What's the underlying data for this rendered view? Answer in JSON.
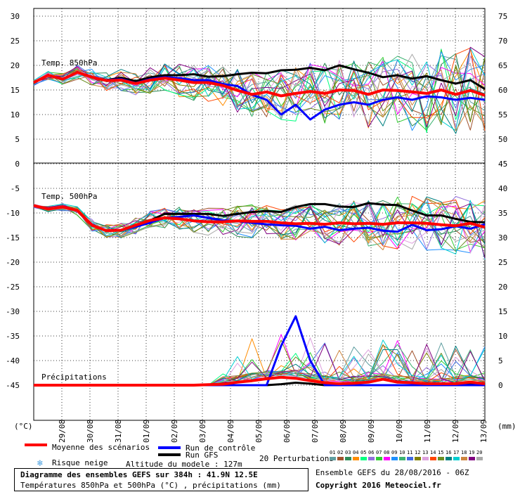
{
  "chart_data": {
    "type": "line",
    "title": "Diagramme des ensembles GEFS sur 384h : 41.9N 12.5E",
    "subtitle": "Températures 850hPa et 500hPa (°C) , précipitations (mm)",
    "x_labels": [
      "29/08",
      "30/08",
      "31/08",
      "01/09",
      "02/09",
      "03/09",
      "04/09",
      "05/09",
      "06/09",
      "07/09",
      "08/09",
      "09/09",
      "10/09",
      "11/09",
      "12/09",
      "13/09"
    ],
    "left_axis": {
      "unit": "(°C)",
      "ticks": [
        30,
        25,
        20,
        15,
        10,
        5,
        0,
        -5,
        -10,
        -15,
        -20,
        -25,
        -30,
        -35,
        -40,
        -45
      ]
    },
    "right_axis": {
      "unit": "(mm)",
      "ticks": [
        75,
        70,
        65,
        60,
        55,
        50,
        45,
        40,
        35,
        30,
        25,
        20,
        15,
        10,
        5,
        0
      ]
    },
    "grid": true,
    "panels": [
      {
        "label": "Temp. 850hPa",
        "ylim": [
          0,
          30
        ]
      },
      {
        "label": "Temp. 500hPa",
        "ylim": [
          -45,
          -5
        ]
      },
      {
        "label": "Précipitations",
        "ylim": [
          0,
          20
        ]
      }
    ],
    "t850": {
      "mean": [
        16.5,
        18,
        17.2,
        18.6,
        17.6,
        16.9,
        17,
        16.3,
        17,
        17.4,
        17,
        16.5,
        16.5,
        15.9,
        14.9,
        14.1,
        14.6,
        13.8,
        14.3,
        14.7,
        14.3,
        15,
        14.9,
        14.1,
        15,
        14.9,
        14.6,
        14.3,
        15,
        14.1,
        14.9,
        13.9
      ],
      "control": [
        16.5,
        18,
        17.2,
        18.6,
        17.6,
        17,
        17.2,
        16.4,
        17.2,
        17.6,
        17.4,
        17,
        17,
        16.2,
        15.8,
        14,
        13,
        10,
        12,
        9,
        11,
        12,
        12.5,
        12,
        13,
        13.5,
        13,
        13.7,
        13.5,
        13,
        13.4,
        13
      ],
      "gfs": [
        16.5,
        18,
        17.2,
        18.6,
        17.6,
        17,
        17.5,
        16.8,
        17.6,
        18,
        18,
        18.2,
        17.7,
        17.8,
        18.2,
        18.5,
        18.4,
        19,
        19.1,
        19.5,
        19,
        20,
        19.2,
        18.5,
        17.6,
        18,
        17.3,
        17.8,
        17,
        16.3,
        17,
        15.2
      ]
    },
    "t500": {
      "mean": [
        -8.5,
        -9.2,
        -8.8,
        -9.5,
        -12.5,
        -13.6,
        -13.5,
        -12.5,
        -11.5,
        -11,
        -11.2,
        -11.6,
        -11.8,
        -11.8,
        -11.6,
        -11.7,
        -11.7,
        -12,
        -12.2,
        -12.1,
        -12.3,
        -12,
        -12.2,
        -12.1,
        -12.3,
        -12,
        -12,
        -12.1,
        -12.4,
        -12.6,
        -12.1,
        -12.9
      ],
      "control": [
        -8.5,
        -9.2,
        -8.8,
        -9.5,
        -12.5,
        -13.6,
        -13.5,
        -12.8,
        -12,
        -11,
        -10.8,
        -10.5,
        -11,
        -11.5,
        -11.7,
        -12,
        -12.3,
        -12.5,
        -12.6,
        -13.2,
        -12.8,
        -13.5,
        -13.2,
        -13,
        -13.6,
        -13.8,
        -12.4,
        -13.5,
        -13.3,
        -12.7,
        -13.2,
        -12.3
      ],
      "gfs": [
        -8.5,
        -9.2,
        -8.8,
        -9.5,
        -12.5,
        -13.6,
        -13.5,
        -12.6,
        -11.5,
        -10.2,
        -10.2,
        -10.2,
        -10.2,
        -10.6,
        -10.2,
        -9.8,
        -9.6,
        -9.8,
        -8.8,
        -8.2,
        -8.2,
        -8.7,
        -8.8,
        -8,
        -8.3,
        -8.4,
        -9.5,
        -10.5,
        -10.5,
        -11.2,
        -11.8,
        -11.9
      ]
    },
    "precip": {
      "mean": [
        0,
        0,
        0,
        0,
        0,
        0,
        0,
        0,
        0,
        0,
        0,
        0,
        0.1,
        0.2,
        0.6,
        0.9,
        1.3,
        1.6,
        1.4,
        0.9,
        0.5,
        0.3,
        0.4,
        0.6,
        1.2,
        0.6,
        0.5,
        0.3,
        0.3,
        0.3,
        0.6,
        0.3
      ],
      "control": [
        0,
        0,
        0,
        0,
        0,
        0,
        0,
        0,
        0,
        0,
        0,
        0,
        0,
        0,
        0,
        0,
        0,
        8,
        14,
        5,
        0,
        0,
        0,
        0,
        0,
        0,
        0,
        0,
        0,
        0,
        0,
        0
      ],
      "gfs": [
        0,
        0,
        0,
        0,
        0,
        0,
        0,
        0,
        0,
        0,
        0,
        0,
        0,
        0,
        0,
        0,
        0,
        0.2,
        0.5,
        0.3,
        0,
        0,
        0,
        0,
        0,
        0,
        0,
        0,
        0,
        0,
        0.2,
        0
      ]
    }
  },
  "legend": {
    "mean": "Moyenne des scénarios",
    "control": "Run de contrôle",
    "gfs": "Run GFS",
    "snow": "Risque neige",
    "altitude": "Altitude du modele : 127m",
    "perturbations": "20 Perturbations",
    "perturbation_ids": [
      "01",
      "02",
      "03",
      "04",
      "05",
      "06",
      "07",
      "08",
      "09",
      "10",
      "11",
      "12",
      "13",
      "14",
      "15",
      "16",
      "17",
      "18",
      "19",
      "20"
    ],
    "perturbation_colors": [
      "#5f9ea0",
      "#a0522d",
      "#2e8b57",
      "#ff8c00",
      "#00ff7f",
      "#9370db",
      "#32cd32",
      "#ff00ff",
      "#1e90ff",
      "#3cb371",
      "#4169e1",
      "#808000",
      "#dda0dd",
      "#ff4500",
      "#6b8e23",
      "#008080",
      "#00ced1",
      "#cd853f",
      "#800080",
      "#a9a9a9"
    ]
  },
  "colors": {
    "mean": "#ff0000",
    "control": "#0000ff",
    "gfs": "#000000",
    "grid": "#000000"
  },
  "icons": {
    "snow": "snowflake-icon"
  },
  "info": {
    "title": "Diagramme des ensembles GEFS sur 384h : 41.9N 12.5E",
    "subtitle": "Températures 850hPa et 500hPa (°C) , précipitations (mm)",
    "run": "Ensemble GEFS du 28/08/2016 - 06Z",
    "copyright": "Copyright 2016 Meteociel.fr"
  }
}
